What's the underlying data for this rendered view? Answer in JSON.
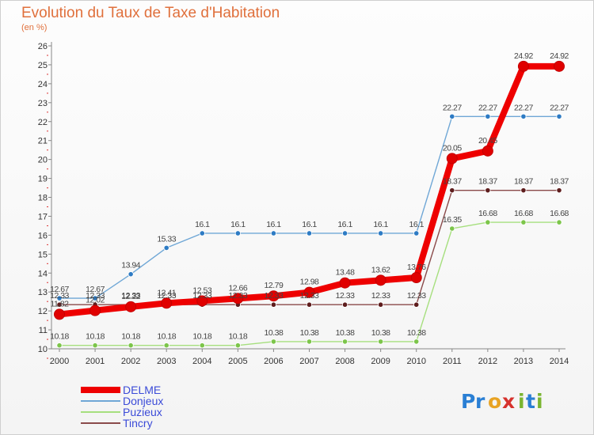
{
  "header": {
    "title": "Evolution du Taux de Taxe d'Habitation",
    "subtitle": "(en %)"
  },
  "logo": {
    "letters": [
      "P",
      "r",
      "o",
      "x",
      "i",
      "t",
      "i"
    ],
    "colors": [
      "#2a7fd4",
      "#2a7fd4",
      "#e8a323",
      "#d6322d",
      "#7ab530",
      "#2a7fd4",
      "#7ab530"
    ]
  },
  "chart_data": {
    "type": "line",
    "x": [
      "2000",
      "2001",
      "2002",
      "2003",
      "2004",
      "2005",
      "2006",
      "2007",
      "2008",
      "2009",
      "2010",
      "2011",
      "2012",
      "2013",
      "2014"
    ],
    "yticks": [
      "10",
      "11",
      "12",
      "13",
      "14",
      "15",
      "16",
      "17",
      "18",
      "19",
      "20",
      "21",
      "22",
      "23",
      "24",
      "25",
      "26"
    ],
    "ylim": [
      10,
      26
    ],
    "grid": false,
    "legend_position": "bottom-left",
    "series": [
      {
        "name": "Donjeux",
        "color": "#6fa7d6",
        "marker": "#2d7bc4",
        "values": [
          12.67,
          12.67,
          13.94,
          15.33,
          16.1,
          16.1,
          16.1,
          16.1,
          16.1,
          16.1,
          16.1,
          22.27,
          22.27,
          22.27,
          22.27
        ],
        "labels": [
          "12.67",
          "12.67",
          "13.94",
          "15.33",
          "16.1",
          "16.1",
          "16.1",
          "16.1",
          "16.1",
          "16.1",
          "16.1",
          "22.27",
          "22.27",
          "22.27",
          "22.27"
        ]
      },
      {
        "name": "Puzieux",
        "color": "#a6df7e",
        "marker": "#7cc54a",
        "values": [
          10.18,
          10.18,
          10.18,
          10.18,
          10.18,
          10.18,
          10.38,
          10.38,
          10.38,
          10.38,
          10.38,
          16.35,
          16.68,
          16.68,
          16.68
        ],
        "labels": [
          "10.18",
          "10.18",
          "10.18",
          "10.18",
          "10.18",
          "10.18",
          "10.38",
          "10.38",
          "10.38",
          "10.38",
          "10.38",
          "16.35",
          "16.68",
          "16.68",
          "16.68"
        ]
      },
      {
        "name": "Tincry",
        "color": "#8a4a4a",
        "marker": "#5e1d1d",
        "values": [
          12.33,
          12.33,
          12.33,
          12.33,
          12.33,
          12.33,
          12.33,
          12.33,
          12.33,
          12.33,
          12.33,
          18.37,
          18.37,
          18.37,
          18.37
        ],
        "labels": [
          "12.33",
          "12.33",
          "12.33",
          "12.33",
          "12.33",
          "12.33",
          "12.33",
          "12.33",
          "12.33",
          "12.33",
          "12.33",
          "18.37",
          "18.37",
          "18.37",
          "18.37"
        ]
      },
      {
        "name": "DELME",
        "color": "#ee0000",
        "marker": "#e00000",
        "values": [
          11.82,
          12.02,
          12.22,
          12.41,
          12.53,
          12.66,
          12.79,
          12.98,
          13.48,
          13.62,
          13.76,
          20.05,
          20.45,
          24.92,
          24.92
        ],
        "labels": [
          "11.82",
          "12.02",
          "12.22",
          "12.41",
          "12.53",
          "12.66",
          "12.79",
          "12.98",
          "13.48",
          "13.62",
          "13.76",
          "20.05",
          "20.45",
          "24.92",
          "24.92"
        ]
      }
    ],
    "legend": [
      "DELME",
      "Donjeux",
      "Puzieux",
      "Tincry"
    ]
  }
}
